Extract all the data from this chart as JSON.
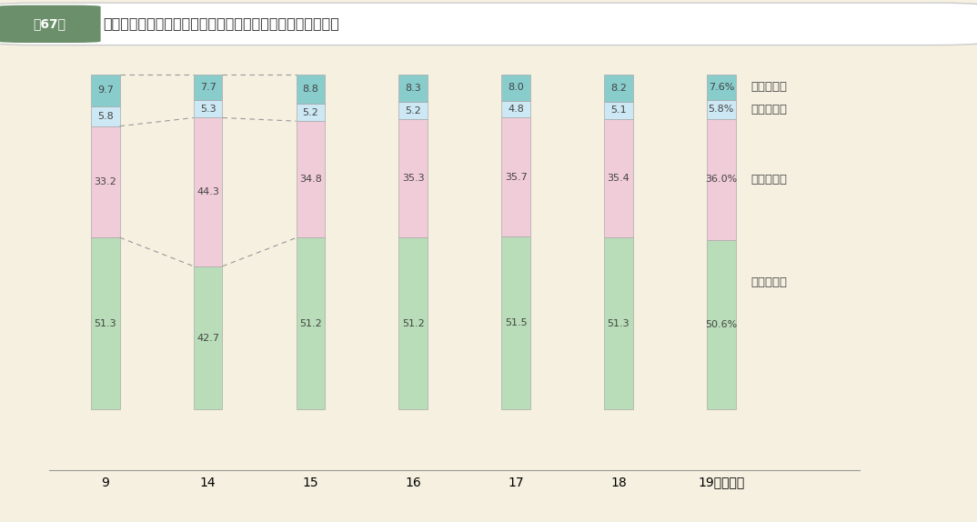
{
  "title_box": "第67図",
  "title_main": "普通建設事業費の財源構成比の推移（その２　補助事業費）",
  "years": [
    "9",
    "14",
    "15",
    "16",
    "17",
    "18",
    "19（年度）"
  ],
  "kokko": [
    51.3,
    42.7,
    51.2,
    51.2,
    51.5,
    51.3,
    50.6
  ],
  "chiho": [
    33.2,
    44.3,
    34.8,
    35.3,
    35.7,
    35.4,
    36.0
  ],
  "sono_hoka": [
    5.8,
    5.3,
    5.2,
    5.2,
    4.8,
    5.1,
    5.8
  ],
  "ippan": [
    9.7,
    7.7,
    8.8,
    8.3,
    8.0,
    8.2,
    7.6
  ],
  "color_kokko": "#b8ddb8",
  "color_chiho": "#f0ccd8",
  "color_sono_hoka": "#cce8f4",
  "color_ippan": "#88cccc",
  "bg_color": "#f5f0e0",
  "title_bg": "#ffffff",
  "title_border": "#cccccc",
  "title_box_bg": "#6a8f6a",
  "bar_width": 0.28,
  "label_fontsize": 8.0,
  "legend_fontsize": 9.5,
  "axis_fontsize": 10.0,
  "legend_kokko": "国庫支出金",
  "legend_chiho": "地　方　債",
  "legend_sono_hoka": "そ　の　他",
  "legend_ippan": "一般財源等"
}
